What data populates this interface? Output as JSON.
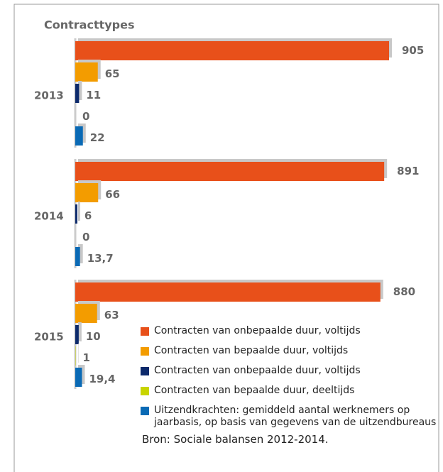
{
  "chart_data": {
    "type": "bar",
    "orientation": "horizontal",
    "title": "Contracttypes",
    "categories": [
      "2013",
      "2014",
      "2015"
    ],
    "series": [
      {
        "name": "Contracten van onbepaalde duur, voltijds",
        "color": "#e8501a",
        "values": [
          905,
          891,
          880
        ]
      },
      {
        "name": "Contracten van bepaalde duur, voltijds",
        "color": "#f39c00",
        "values": [
          65,
          66,
          63
        ]
      },
      {
        "name": "Contracten van onbepaalde duur, voltijds",
        "color": "#0d2a6b",
        "values": [
          11,
          6,
          10
        ]
      },
      {
        "name": "Contracten van bepaalde duur, deeltijds",
        "color": "#c8d400",
        "values": [
          0,
          0,
          1
        ]
      },
      {
        "name": "Uitzendkrachten: gemiddeld aantal werknemers op jaarbasis, op basis van gegevens van de uitzendbureaus",
        "color": "#0a6ab5",
        "values": [
          22,
          13.7,
          19.4
        ],
        "value_labels": [
          "22",
          "13,7",
          "19,4"
        ]
      }
    ],
    "source": "Bron: Sociale balansen 2012-2014."
  }
}
